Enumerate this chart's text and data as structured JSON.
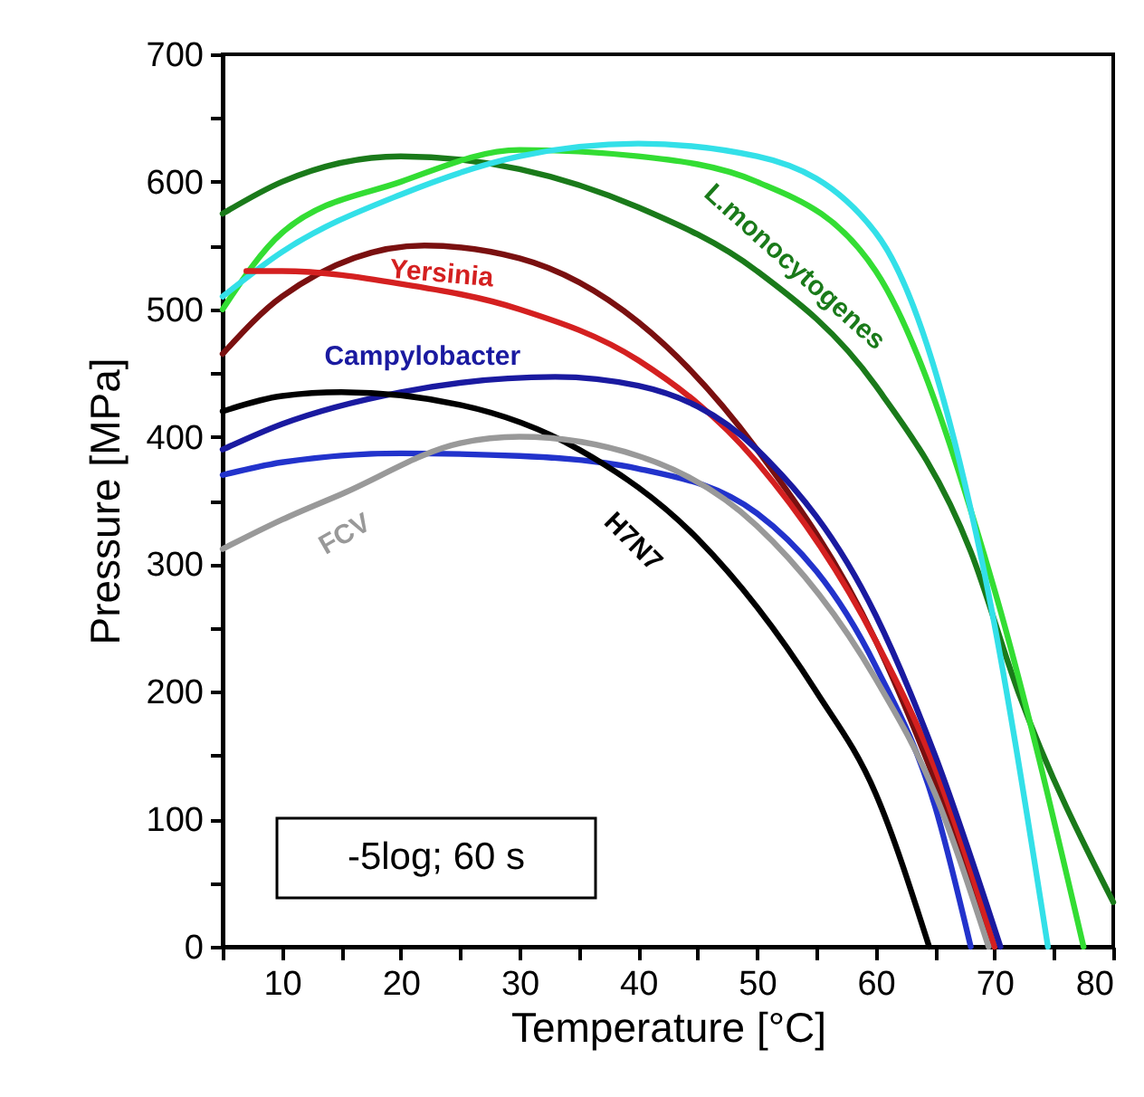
{
  "chart_data": {
    "type": "line",
    "xlabel": "Temperature [°C]",
    "ylabel": "Pressure [MPa]",
    "xlim": [
      5,
      80
    ],
    "ylim": [
      0,
      700
    ],
    "xticks": [
      {
        "value": 5,
        "label": null
      },
      10,
      {
        "value": 15,
        "label": null
      },
      20,
      {
        "value": 25,
        "label": null
      },
      30,
      {
        "value": 35,
        "label": null
      },
      40,
      {
        "value": 45,
        "label": null
      },
      50,
      {
        "value": 55,
        "label": null
      },
      60,
      {
        "value": 65,
        "label": null
      },
      70,
      {
        "value": 75,
        "label": null
      },
      80
    ],
    "yticks": [
      0,
      {
        "value": 50,
        "label": null
      },
      100,
      {
        "value": 150,
        "label": null
      },
      200,
      {
        "value": 250,
        "label": null
      },
      300,
      {
        "value": 350,
        "label": null
      },
      400,
      {
        "value": 450,
        "label": null
      },
      500,
      {
        "value": 550,
        "label": null
      },
      600,
      {
        "value": 650,
        "label": null
      },
      700
    ],
    "grid": false,
    "marker": "none",
    "line_style": "solid",
    "annotations": [
      "-5log; 60 s"
    ],
    "series": [
      {
        "name": "L.monocytogenes",
        "color": "#1a7a1a",
        "x": [
          5,
          10,
          20,
          30,
          40,
          50,
          60,
          68,
          72,
          80
        ],
        "values": [
          575,
          600,
          620,
          610,
          580,
          530,
          440,
          310,
          200,
          35
        ]
      },
      {
        "color": "#33dd33",
        "x": [
          5,
          10,
          20,
          30,
          40,
          50,
          60,
          70,
          77.5
        ],
        "values": [
          500,
          560,
          600,
          625,
          620,
          600,
          530,
          280,
          0
        ]
      },
      {
        "color": "#33e0e8",
        "x": [
          5,
          10,
          20,
          30,
          40,
          50,
          60,
          69,
          74.5
        ],
        "values": [
          510,
          545,
          590,
          620,
          630,
          620,
          560,
          300,
          0
        ]
      },
      {
        "color": "#7a1010",
        "x": [
          5,
          10,
          22,
          30,
          40,
          50,
          60,
          65,
          70
        ],
        "values": [
          465,
          510,
          550,
          540,
          490,
          390,
          240,
          130,
          0
        ]
      },
      {
        "name": "Yersinia",
        "color": "#d42020",
        "x": [
          7,
          10,
          20,
          30,
          40,
          50,
          60,
          65,
          70
        ],
        "values": [
          530,
          530,
          520,
          500,
          460,
          380,
          240,
          140,
          0
        ]
      },
      {
        "name": "Campylobacter",
        "color": "#1a1aa0",
        "x": [
          5,
          10,
          20,
          33,
          40,
          50,
          60,
          65,
          70.5
        ],
        "values": [
          390,
          410,
          435,
          447,
          440,
          390,
          260,
          150,
          0
        ]
      },
      {
        "color": "#2233cc",
        "x": [
          5,
          10,
          20,
          30,
          40,
          50,
          60,
          65,
          68
        ],
        "values": [
          370,
          380,
          387,
          385,
          375,
          340,
          220,
          110,
          0
        ]
      },
      {
        "name": "H7N7",
        "color": "#000000",
        "x": [
          5,
          10,
          15,
          25,
          35,
          45,
          55,
          60,
          64.5
        ],
        "values": [
          420,
          432,
          435,
          425,
          390,
          320,
          200,
          120,
          0
        ]
      },
      {
        "name": "FCV",
        "color": "#999999",
        "x": [
          5,
          10,
          15,
          25,
          30,
          40,
          50,
          60,
          65,
          69.5
        ],
        "values": [
          312,
          335,
          355,
          395,
          400,
          385,
          330,
          210,
          120,
          0
        ]
      }
    ]
  }
}
